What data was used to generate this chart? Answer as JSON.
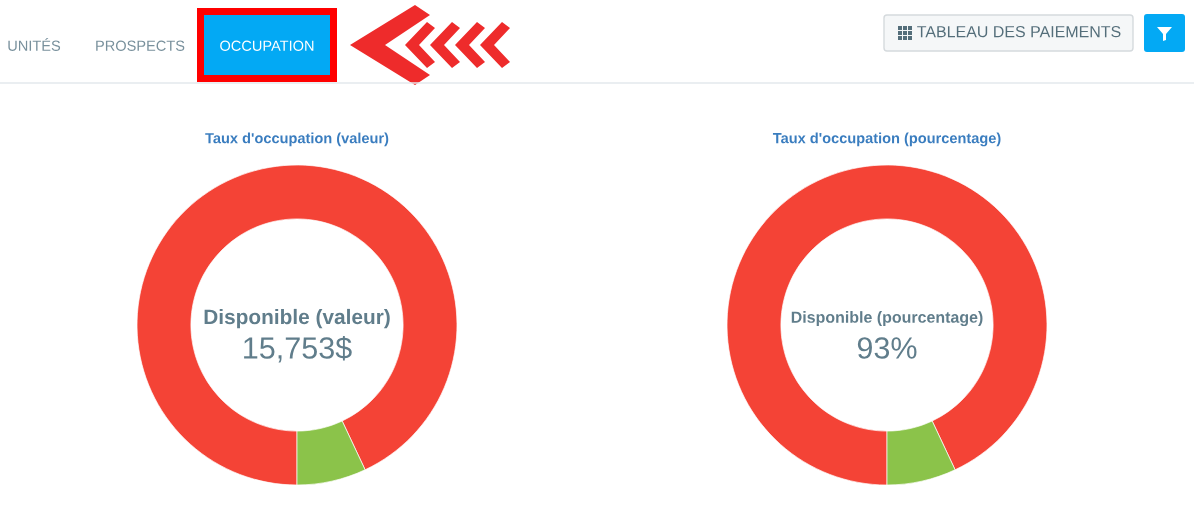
{
  "chart_data": [
    {
      "type": "other",
      "annotations": [
        "UNITÉS",
        "PROSPECTS",
        "OCCUPATION",
        "TABLEAU DES PAIEMENTS"
      ]
    },
    {
      "type": "donut",
      "title": "Taux d'occupation (valeur)",
      "categories": [
        null,
        null
      ],
      "values": [
        93,
        7
      ],
      "colors": [
        "#f44336",
        "#8bc34a"
      ],
      "annotations": [
        "Disponible (valeur)",
        "15,753$"
      ]
    },
    {
      "type": "donut",
      "title": "Taux d'occupation (pourcentage)",
      "categories": [
        null,
        null
      ],
      "values": [
        93,
        7
      ],
      "colors": [
        "#f44336",
        "#8bc34a"
      ],
      "annotations": [
        "Disponible (pourcentage)",
        "93%"
      ]
    }
  ]
}
